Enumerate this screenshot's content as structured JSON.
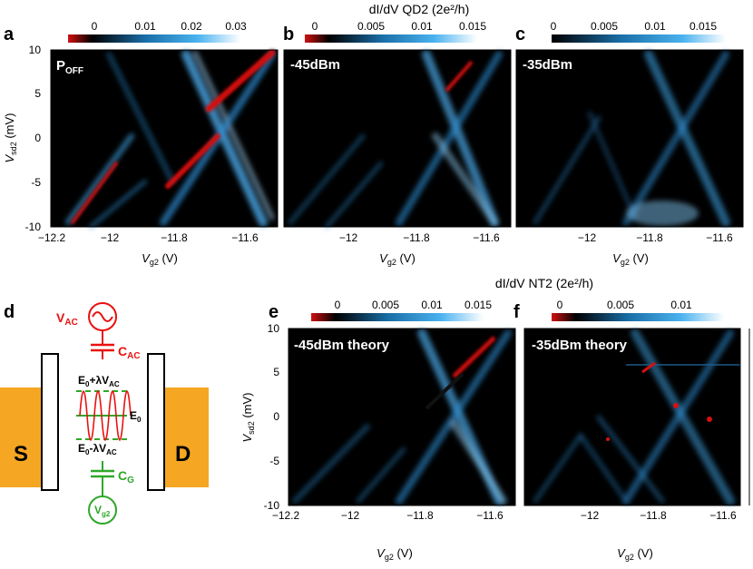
{
  "headers": {
    "top": "dI/dV QD2 (2e²/h)",
    "bottom": "dI/dV NT2 (2e²/h)"
  },
  "colorbars": {
    "a": [
      "0",
      "0.01",
      "0.02",
      "0.03"
    ],
    "b": [
      "0",
      "0.005",
      "0.01",
      "0.015"
    ],
    "c": [
      "0",
      "0.005",
      "0.01",
      "0.015"
    ],
    "e": [
      "0",
      "0.005",
      "0.01",
      "0.015"
    ],
    "f": [
      "0",
      "0.005",
      "0.01"
    ]
  },
  "panels": {
    "a": {
      "letter": "a",
      "label_main": "P",
      "label_sub": "OFF"
    },
    "b": {
      "letter": "b",
      "label_main": "-45dBm"
    },
    "c": {
      "letter": "c",
      "label_main": "-35dBm"
    },
    "d": {
      "letter": "d"
    },
    "e": {
      "letter": "e",
      "label_main": "-45dBm theory"
    },
    "f": {
      "letter": "f",
      "label_main": "-35dBm theory"
    }
  },
  "axes": {
    "ylabel_main": "V",
    "ylabel_sub": "sd2",
    "ylabel_unit": " (mV)",
    "xlabel_main": "V",
    "xlabel_sub": "g2",
    "xlabel_unit": " (V)",
    "yticks": [
      "10",
      "5",
      "0",
      "-5",
      "-10"
    ],
    "xticks_a": [
      "−12.2",
      "−12",
      "−11.8",
      "−11.6"
    ],
    "xticks_b": [
      "−12",
      "−11.8",
      "−11.6"
    ],
    "xticks_c": [
      "−12",
      "−11.8",
      "−11.6"
    ],
    "xticks_e": [
      "−12.2",
      "−12",
      "−11.8",
      "−11.6"
    ],
    "xticks_f": [
      "−12",
      "−11.8",
      "−11.6"
    ]
  },
  "schematic": {
    "vac_main": "V",
    "vac_sub": "AC",
    "cac_main": "C",
    "cac_sub": "AC",
    "cg_main": "C",
    "cg_sub": "G",
    "vg_main": "V",
    "vg_sub": "g2",
    "source": "S",
    "drain": "D",
    "e0": "E",
    "e0_sub": "0",
    "e_plus": "+λV",
    "e_plus_sub": "AC",
    "e_minus": "-λV",
    "e_minus_sub": "AC"
  },
  "colors": {
    "red": "#e8120f",
    "green": "#2fa82a",
    "lead": "#f5a623",
    "cmap_zero": "#000000",
    "cmap_neg": "#c00000",
    "cmap_pos": "#2e9be0"
  }
}
